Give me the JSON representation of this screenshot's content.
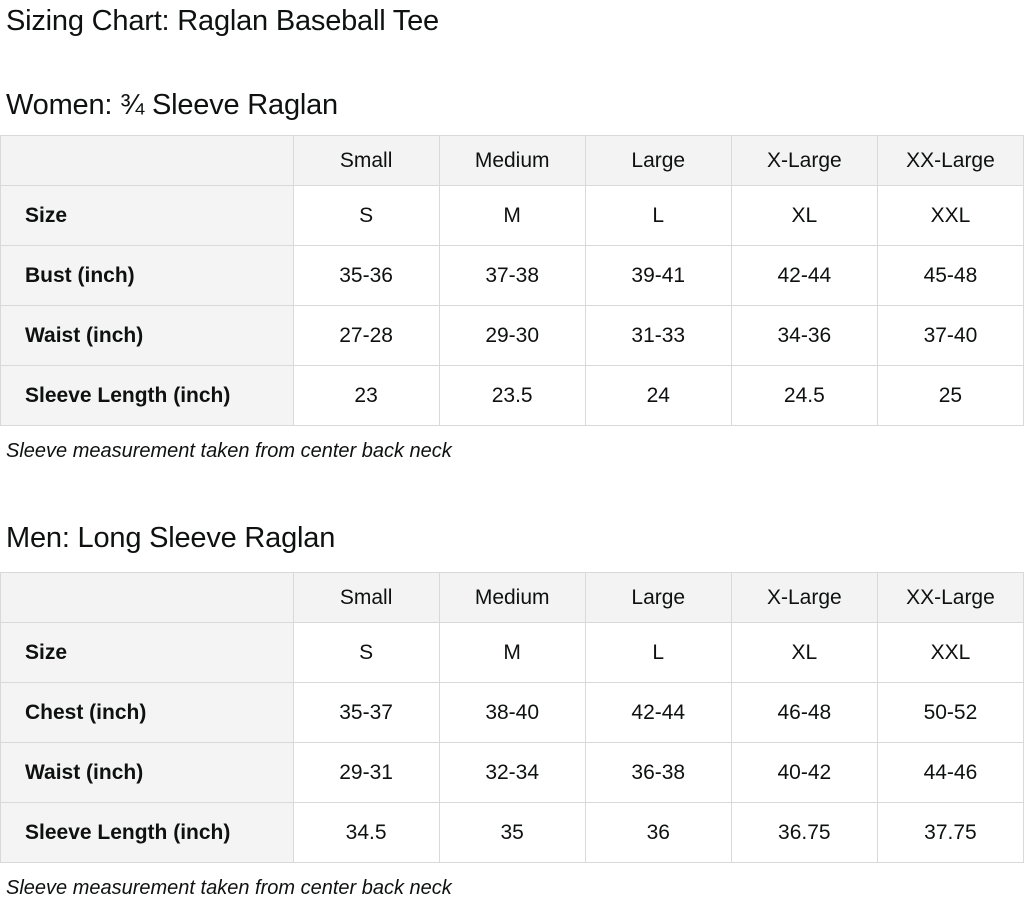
{
  "page_title": "Sizing Chart: Raglan Baseball Tee",
  "colors": {
    "text": "#0f1111",
    "table_header_bg": "#f3f3f3",
    "table_border": "#d9d9d9",
    "cell_bg": "#ffffff"
  },
  "women": {
    "heading": "Women: ¾ Sleeve Raglan",
    "columns": [
      "Small",
      "Medium",
      "Large",
      "X-Large",
      "XX-Large"
    ],
    "rows": [
      {
        "label": "Size",
        "values": [
          "S",
          "M",
          "L",
          "XL",
          "XXL"
        ]
      },
      {
        "label": "Bust (inch)",
        "values": [
          "35-36",
          "37-38",
          "39-41",
          "42-44",
          "45-48"
        ]
      },
      {
        "label": "Waist (inch)",
        "values": [
          "27-28",
          "29-30",
          "31-33",
          "34-36",
          "37-40"
        ]
      },
      {
        "label": "Sleeve Length (inch)",
        "values": [
          "23",
          "23.5",
          "24",
          "24.5",
          "25"
        ]
      }
    ],
    "note": "Sleeve measurement taken from center back neck"
  },
  "men": {
    "heading": "Men: Long Sleeve Raglan",
    "columns": [
      "Small",
      "Medium",
      "Large",
      "X-Large",
      "XX-Large"
    ],
    "rows": [
      {
        "label": "Size",
        "values": [
          "S",
          "M",
          "L",
          "XL",
          "XXL"
        ]
      },
      {
        "label": "Chest (inch)",
        "values": [
          "35-37",
          "38-40",
          "42-44",
          "46-48",
          "50-52"
        ]
      },
      {
        "label": "Waist (inch)",
        "values": [
          "29-31",
          "32-34",
          "36-38",
          "40-42",
          "44-46"
        ]
      },
      {
        "label": "Sleeve Length (inch)",
        "values": [
          "34.5",
          "35",
          "36",
          "36.75",
          "37.75"
        ]
      }
    ],
    "note": "Sleeve measurement taken from center back neck"
  }
}
